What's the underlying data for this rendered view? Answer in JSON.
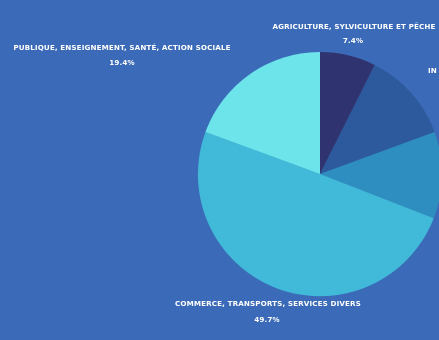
{
  "chart_data": {
    "type": "pie",
    "slices": [
      {
        "label": "AGRICULTURE, SYLVICULTURE ET PÊCHE",
        "value": 7.4,
        "display": "7.4%",
        "color": "#2f3470"
      },
      {
        "label": "IN",
        "value": 12.0,
        "display": "",
        "color": "#2c5a9c"
      },
      {
        "label": "",
        "value": 11.5,
        "display": "",
        "color": "#2f8ec0"
      },
      {
        "label": "COMMERCE, TRANSPORTS, SERVICES DIVERS",
        "value": 49.7,
        "display": "49.7%",
        "color": "#41b9d8"
      },
      {
        "label": "PUBLIQUE, ENSEIGNEMENT, SANTÉ, ACTION SOCIALE",
        "value": 19.4,
        "display": "19.4%",
        "color": "#6de3ea"
      }
    ],
    "start": "12 o'clock",
    "direction": "clockwise"
  },
  "colors": {
    "background": "#3b6bb8",
    "label_text": "#ffffff"
  }
}
